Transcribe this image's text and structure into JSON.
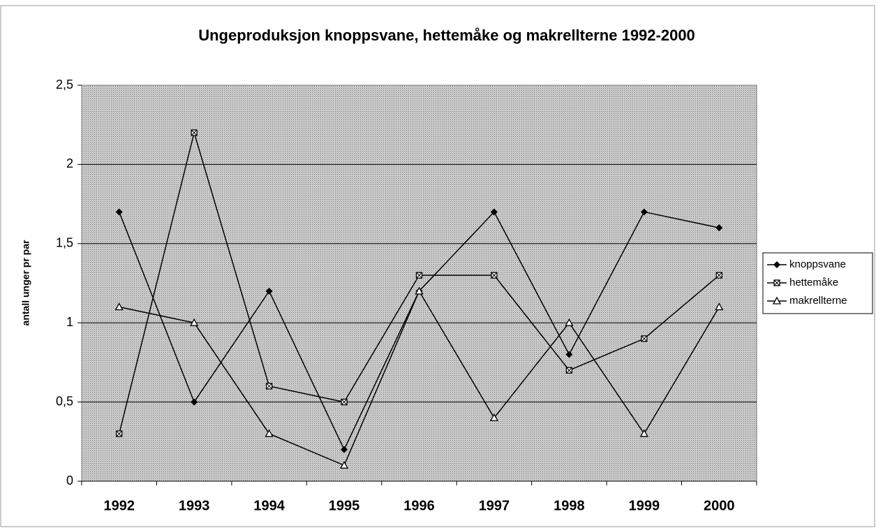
{
  "chart_data": {
    "type": "line",
    "title": "Ungeproduksjon knoppsvane, hettemåke og makrellterne 1992-2000",
    "y_label": "antall unger pr par",
    "categories": [
      "1992",
      "1993",
      "1994",
      "1995",
      "1996",
      "1997",
      "1998",
      "1999",
      "2000"
    ],
    "series": [
      {
        "name": "knoppsvane",
        "color": "#000000",
        "marker": "diamond",
        "values": [
          1.7,
          0.5,
          1.2,
          0.2,
          1.2,
          1.7,
          0.8,
          1.7,
          1.6
        ]
      },
      {
        "name": "hettemåke",
        "color": "#000000",
        "marker": "square",
        "values": [
          0.3,
          2.2,
          0.6,
          0.5,
          1.3,
          1.3,
          0.7,
          0.9,
          1.3
        ]
      },
      {
        "name": "makrellterne",
        "color": "#000000",
        "marker": "triangle",
        "values": [
          1.1,
          1.0,
          0.3,
          0.1,
          1.2,
          0.4,
          1.0,
          0.3,
          1.1
        ]
      }
    ],
    "ylim": [
      0,
      2.5
    ],
    "yticks": [
      0,
      {
        "value": 0.5,
        "label": "0,5"
      },
      1,
      {
        "value": 1.5,
        "label": "1,5"
      },
      2,
      {
        "value": 2.5,
        "label": "2,5"
      }
    ],
    "grid": true,
    "legend": "right"
  }
}
